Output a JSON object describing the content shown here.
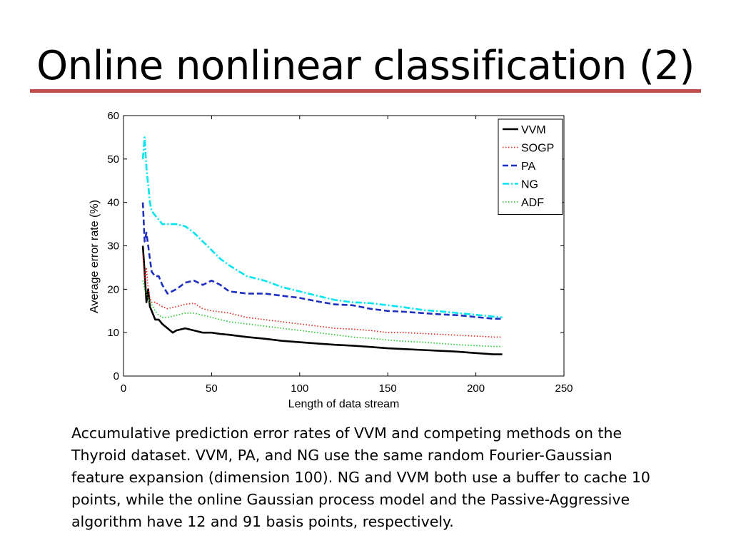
{
  "slide": {
    "title": "Online nonlinear classification (2)",
    "accent_color": "#c0504d"
  },
  "caption": {
    "lines": [
      "Accumulative prediction error rates of VVM and competing methods on the",
      "Thyroid dataset.  VVM, PA, and NG use the same random Fourier-Gaussian",
      "feature expansion (dimension 100). NG and VVM both use a buffer to cache 10",
      "points, while the online Gaussian process model and the Passive-Aggressive",
      "algorithm have 12 and 91 basis points, respectively."
    ]
  },
  "chart_data": {
    "type": "line",
    "title": "",
    "xlabel": "Length of data stream",
    "ylabel": "Average error rate (%)",
    "xlim": [
      0,
      250
    ],
    "ylim": [
      0,
      60
    ],
    "xticks": [
      0,
      50,
      100,
      150,
      200,
      250
    ],
    "yticks": [
      0,
      10,
      20,
      30,
      40,
      50,
      60
    ],
    "grid": false,
    "legend_position": "top-right",
    "series": [
      {
        "name": "VVM",
        "color": "#000000",
        "style": "solid",
        "x": [
          11,
          12,
          13,
          14,
          15,
          16,
          18,
          20,
          22,
          25,
          28,
          30,
          35,
          40,
          45,
          50,
          55,
          60,
          70,
          80,
          90,
          100,
          110,
          120,
          130,
          140,
          150,
          160,
          170,
          180,
          190,
          200,
          210,
          215
        ],
        "y": [
          30,
          24,
          17,
          20,
          16,
          15,
          13,
          13,
          12,
          11,
          10,
          10.5,
          11,
          10.5,
          10,
          10,
          9.7,
          9.5,
          9,
          8.6,
          8.1,
          7.8,
          7.5,
          7.2,
          7,
          6.7,
          6.4,
          6.2,
          6,
          5.8,
          5.6,
          5.3,
          5,
          5
        ]
      },
      {
        "name": "SOGP",
        "color": "#e0201b",
        "style": "dotted",
        "x": [
          11,
          12,
          13,
          14,
          15,
          16,
          18,
          20,
          22,
          25,
          30,
          35,
          40,
          45,
          50,
          55,
          60,
          70,
          80,
          90,
          100,
          110,
          120,
          130,
          140,
          150,
          160,
          170,
          180,
          190,
          200,
          210,
          215
        ],
        "y": [
          28,
          22,
          25,
          20,
          18,
          17,
          17,
          16.5,
          16,
          15.5,
          16,
          16.5,
          16.8,
          15.5,
          15,
          14.8,
          14.5,
          13.5,
          13,
          12.5,
          12,
          11.5,
          11,
          10.8,
          10.5,
          10,
          10,
          9.8,
          9.6,
          9.4,
          9.2,
          9,
          9
        ]
      },
      {
        "name": "PA",
        "color": "#1f2fbf",
        "style": "dashed",
        "x": [
          11,
          12,
          13,
          14,
          15,
          16,
          18,
          20,
          22,
          25,
          30,
          35,
          40,
          45,
          50,
          55,
          60,
          70,
          80,
          90,
          100,
          110,
          120,
          130,
          140,
          150,
          160,
          170,
          180,
          190,
          200,
          210,
          215
        ],
        "y": [
          40,
          31,
          33,
          30,
          27,
          24,
          23,
          23,
          21,
          19,
          20,
          21.5,
          22,
          21,
          22,
          21,
          19.5,
          19,
          19,
          18.5,
          18,
          17.2,
          16.5,
          16.3,
          15.5,
          15,
          14.8,
          14.5,
          14.2,
          14,
          13.6,
          13.2,
          13.2
        ]
      },
      {
        "name": "NG",
        "color": "#00e5ee",
        "style": "dashdot",
        "x": [
          11,
          12,
          13,
          14,
          15,
          16,
          18,
          20,
          22,
          25,
          30,
          35,
          40,
          45,
          50,
          55,
          60,
          70,
          80,
          90,
          100,
          110,
          120,
          130,
          140,
          150,
          160,
          170,
          180,
          190,
          200,
          210,
          215
        ],
        "y": [
          50,
          55,
          48,
          44,
          40,
          38,
          37,
          36,
          35,
          35,
          35,
          34.5,
          33,
          31,
          29,
          27,
          25.5,
          23,
          22,
          20.5,
          19.5,
          18.5,
          17.5,
          17,
          16.8,
          16.3,
          15.8,
          15.2,
          14.9,
          14.5,
          14.1,
          13.7,
          13.5
        ]
      },
      {
        "name": "ADF",
        "color": "#22c322",
        "style": "dotted",
        "x": [
          11,
          12,
          13,
          14,
          15,
          16,
          18,
          20,
          22,
          25,
          30,
          35,
          40,
          45,
          50,
          55,
          60,
          70,
          80,
          90,
          100,
          110,
          120,
          130,
          140,
          150,
          160,
          170,
          180,
          190,
          200,
          210,
          215
        ],
        "y": [
          22,
          20,
          19,
          18,
          17,
          16.5,
          15,
          14,
          13.5,
          13.5,
          14,
          14.5,
          14.5,
          14,
          13.5,
          13,
          12.5,
          12,
          11.5,
          11,
          10.5,
          10,
          9.5,
          9,
          8.7,
          8.3,
          8,
          7.8,
          7.5,
          7.2,
          7,
          6.8,
          6.8
        ]
      }
    ]
  }
}
